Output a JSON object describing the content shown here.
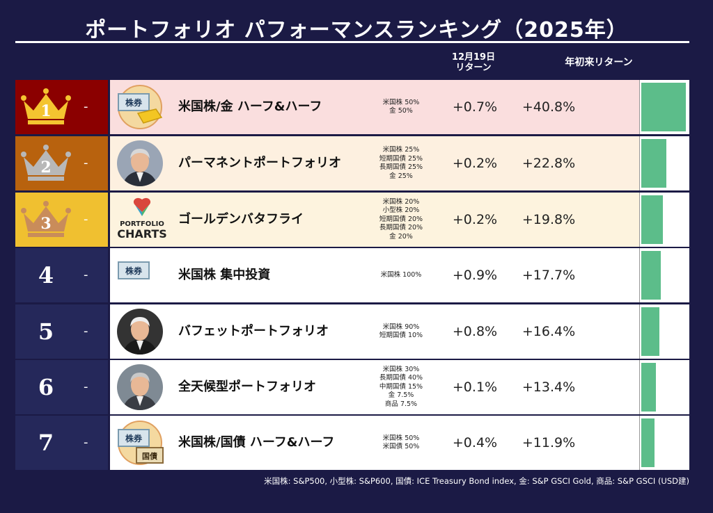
{
  "title": "ポートフォリオ パフォーマンスランキング（2025年）",
  "headers": {
    "daily_line1": "12月19日",
    "daily_line2": "リターン",
    "ytd": "年初来リターン"
  },
  "colors": {
    "background": "#1b1a45",
    "bar": "#5cbd8a",
    "rank1": "#8b0000",
    "rank2": "#b8620e",
    "rank3": "#f0c030"
  },
  "rows": [
    {
      "rank": "1",
      "change": "-",
      "name": "米国株/金 ハーフ&ハーフ",
      "icon": "stock-gold-icon",
      "alloc": [
        "米国株 50%",
        "金 50%"
      ],
      "daily": "+0.7%",
      "ytd": "+40.8%",
      "ytd_value": 40.8
    },
    {
      "rank": "2",
      "change": "-",
      "name": "パーマネントポートフォリオ",
      "icon": "person-portrait-icon",
      "alloc": [
        "米国株 25%",
        "短期国債 25%",
        "長期国債 25%",
        "金 25%"
      ],
      "daily": "+0.2%",
      "ytd": "+22.8%",
      "ytd_value": 22.8
    },
    {
      "rank": "3",
      "change": "-",
      "name": "ゴールデンバタフライ",
      "icon": "portfolio-charts-logo",
      "logo_line1": "PORTFOLIO",
      "logo_line2": "CHARTS",
      "alloc": [
        "米国株 20%",
        "小型株 20%",
        "短期国債 20%",
        "長期国債 20%",
        "金 20%"
      ],
      "daily": "+0.2%",
      "ytd": "+19.8%",
      "ytd_value": 19.8
    },
    {
      "rank": "4",
      "change": "-",
      "name": "米国株 集中投資",
      "icon": "stock-certificate-icon",
      "alloc": [
        "米国株 100%"
      ],
      "daily": "+0.9%",
      "ytd": "+17.7%",
      "ytd_value": 17.7
    },
    {
      "rank": "5",
      "change": "-",
      "name": "バフェットポートフォリオ",
      "icon": "person-portrait-icon",
      "alloc": [
        "米国株 90%",
        "短期国債 10%"
      ],
      "daily": "+0.8%",
      "ytd": "+16.4%",
      "ytd_value": 16.4
    },
    {
      "rank": "6",
      "change": "-",
      "name": "全天候型ポートフォリオ",
      "icon": "person-portrait-icon",
      "alloc": [
        "米国株 30%",
        "長期国債 40%",
        "中期国債 15%",
        "金 7.5%",
        "商品 7.5%"
      ],
      "daily": "+0.1%",
      "ytd": "+13.4%",
      "ytd_value": 13.4
    },
    {
      "rank": "7",
      "change": "-",
      "name": "米国株/国債 ハーフ&ハーフ",
      "icon": "stock-bond-icon",
      "alloc": [
        "米国株 50%",
        "米国債 50%"
      ],
      "daily": "+0.4%",
      "ytd": "+11.9%",
      "ytd_value": 11.9
    }
  ],
  "footer": "米国株: S&P500, 小型株: S&P600, 国債: ICE Treasury Bond index, 金: S&P GSCI Gold, 商品: S&P GSCI (USD建)"
}
